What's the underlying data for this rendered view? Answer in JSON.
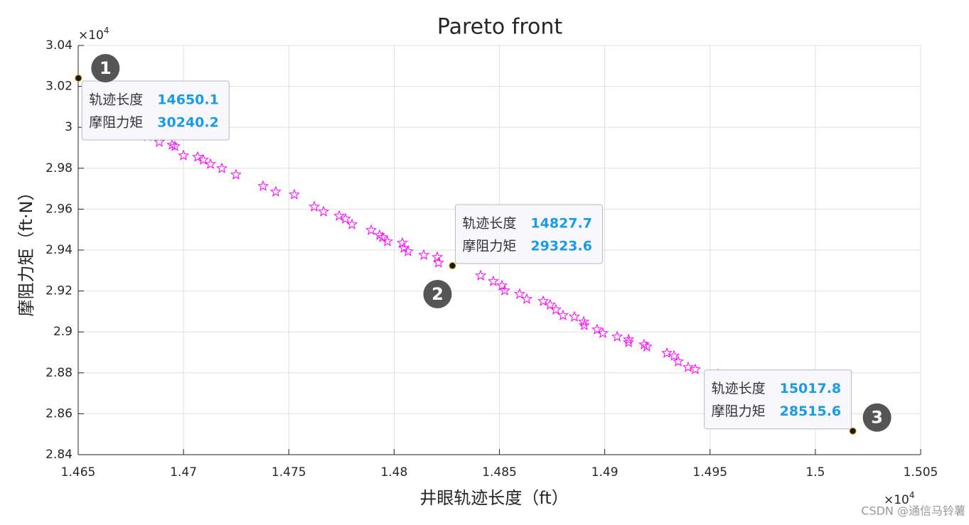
{
  "chart_data": {
    "type": "scatter",
    "title": "Pareto front",
    "x_label": "井眼轨迹长度（ft）",
    "y_label": "摩阻力矩（ft·N）",
    "x_multiplier": {
      "base": "×10",
      "exp": "4"
    },
    "y_multiplier": {
      "base": "×10",
      "exp": "4"
    },
    "xlim": [
      14650,
      15050
    ],
    "xticks": [
      {
        "value": 14650,
        "label": "1.465"
      },
      {
        "value": 14700,
        "label": "1.47"
      },
      {
        "value": 14750,
        "label": "1.475"
      },
      {
        "value": 14800,
        "label": "1.48"
      },
      {
        "value": 14850,
        "label": "1.485"
      },
      {
        "value": 14900,
        "label": "1.49"
      },
      {
        "value": 14950,
        "label": "1.495"
      },
      {
        "value": 15000,
        "label": "1.5"
      },
      {
        "value": 15050,
        "label": "1.505"
      }
    ],
    "ylim": [
      28400,
      30400
    ],
    "yticks": [
      {
        "value": 28400,
        "label": "2.84"
      },
      {
        "value": 28600,
        "label": "2.86"
      },
      {
        "value": 28800,
        "label": "2.88"
      },
      {
        "value": 29000,
        "label": "2.9"
      },
      {
        "value": 29200,
        "label": "2.92"
      },
      {
        "value": 29400,
        "label": "2.94"
      },
      {
        "value": 29600,
        "label": "2.96"
      },
      {
        "value": 29800,
        "label": "2.98"
      },
      {
        "value": 30000,
        "label": "3"
      },
      {
        "value": 30200,
        "label": "3.02"
      },
      {
        "value": 30400,
        "label": "3.04"
      }
    ],
    "grid": true,
    "series": [
      {
        "color": "#ff00ff",
        "x": [
          14683,
          14688.5,
          14694.6,
          14695.9,
          14700,
          14706.7,
          14709.4,
          14712.8,
          14718.2,
          14724.9,
          14737.8,
          14743.8,
          14752.6,
          14762.1,
          14766.5,
          14773.9,
          14776.9,
          14780,
          14789.1,
          14793.1,
          14794.5,
          14796.8,
          14803.9,
          14804.6,
          14806.6,
          14814.1,
          14820.5,
          14821.1,
          14841.1,
          14847.1,
          14851.2,
          14852.5,
          14859.6,
          14863,
          14870.8,
          14874.1,
          14876.8,
          14880.2,
          14885.6,
          14890,
          14890.3,
          14896.4,
          14899.1,
          14905.9,
          14911.3,
          14911.3,
          14918.7,
          14920,
          14929.5,
          14932.9,
          14934.9,
          14939.6,
          14943,
          14953.8
        ],
        "values": [
          29955.6,
          29927.8,
          29913.9,
          29906.9,
          29861.8,
          29854.9,
          29841,
          29820.1,
          29799.3,
          29768.1,
          29712.5,
          29684.7,
          29670.8,
          29611.8,
          29587.5,
          29566.7,
          29552.8,
          29525,
          29497.2,
          29472.9,
          29462.5,
          29441.7,
          29434.7,
          29410.4,
          29393.1,
          29375.7,
          29365.3,
          29337.5,
          29275,
          29247.2,
          29226.4,
          29202.1,
          29184.7,
          29160.4,
          29150,
          29132.6,
          29108.3,
          29080.6,
          29073.6,
          29049.3,
          29031.9,
          29011.1,
          28993.7,
          28976.4,
          28962.5,
          28948.6,
          28938.2,
          28927.8,
          28896.5,
          28882.6,
          28854.9,
          28827.1,
          28816.7,
          28792.4
        ]
      }
    ],
    "datatip_x_label": "轨迹长度",
    "datatip_y_label": "摩阻力矩",
    "datatips": [
      {
        "marker": "1",
        "x": 14650.1,
        "y": 30240.2
      },
      {
        "marker": "2",
        "x": 14827.7,
        "y": 29323.6
      },
      {
        "marker": "3",
        "x": 15017.8,
        "y": 28515.6
      }
    ],
    "watermark": "CSDN @通信马铃薯"
  }
}
